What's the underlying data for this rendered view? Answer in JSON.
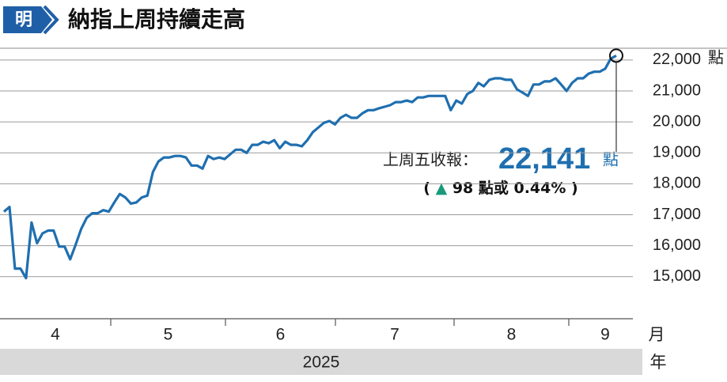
{
  "chart_data": {
    "type": "line",
    "title": "納指上周持續走高",
    "logo": "明",
    "y_unit": "點",
    "months": [
      "4",
      "5",
      "6",
      "7",
      "8",
      "9"
    ],
    "month_unit": "月",
    "year": "2025",
    "year_unit": "年",
    "annotation": {
      "label": "上周五收報：",
      "value_label": "22,141",
      "unit": "點",
      "change_prefix": "(",
      "change_arrow": "▲",
      "change_text": "98 點或 0.44%",
      "change_suffix": ")"
    },
    "series": [
      {
        "color": "#1f6fb0",
        "values": [
          17100,
          17250,
          15260,
          15260,
          14950,
          16750,
          16080,
          16400,
          16490,
          16490,
          15970,
          15970,
          15560,
          16030,
          16540,
          16900,
          17050,
          17050,
          17150,
          17100,
          17400,
          17670,
          17560,
          17360,
          17400,
          17560,
          17620,
          18380,
          18720,
          18850,
          18850,
          18900,
          18900,
          18850,
          18590,
          18590,
          18490,
          18900,
          18800,
          18850,
          18800,
          18950,
          19100,
          19100,
          19000,
          19260,
          19260,
          19360,
          19310,
          19410,
          19150,
          19360,
          19260,
          19260,
          19210,
          19410,
          19670,
          19820,
          19970,
          20030,
          19920,
          20130,
          20230,
          20130,
          20130,
          20280,
          20380,
          20380,
          20440,
          20490,
          20540,
          20640,
          20640,
          20690,
          20640,
          20790,
          20790,
          20840,
          20840,
          20840,
          20840,
          20380,
          20690,
          20590,
          20900,
          21000,
          21260,
          21150,
          21360,
          21410,
          21410,
          21360,
          21360,
          21050,
          20950,
          20840,
          21210,
          21210,
          21310,
          21310,
          21410,
          21210,
          21000,
          21260,
          21410,
          21410,
          21560,
          21620,
          21620,
          21720,
          22043,
          22141
        ]
      }
    ],
    "ylim": [
      13640,
      22380
    ],
    "yticks": [
      {
        "value": 15000,
        "label": "15,000"
      },
      {
        "value": 16000,
        "label": "16,000"
      },
      {
        "value": 17000,
        "label": "17,000"
      },
      {
        "value": 18000,
        "label": "18,000"
      },
      {
        "value": 19000,
        "label": "19,000"
      },
      {
        "value": 20000,
        "label": "20,000"
      },
      {
        "value": 21000,
        "label": "21,000"
      },
      {
        "value": 22000,
        "label": "22,000"
      }
    ],
    "grid": true
  }
}
